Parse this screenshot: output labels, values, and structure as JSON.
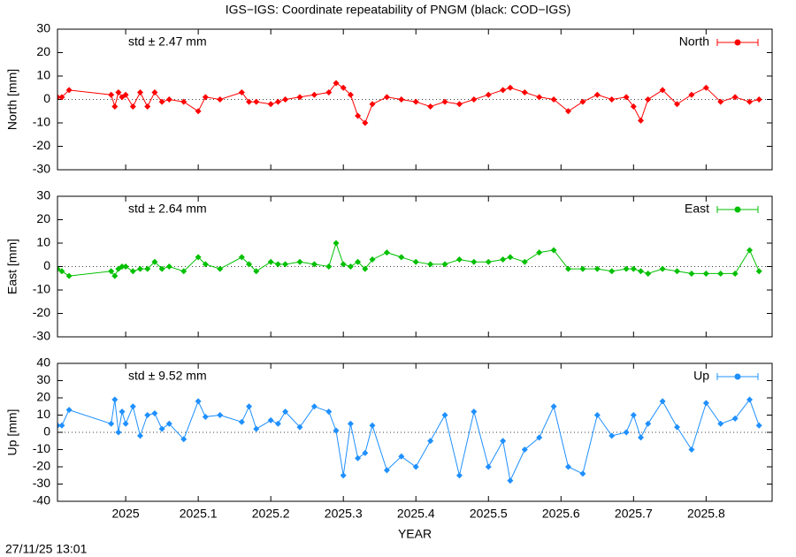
{
  "title": "IGS−IGS: Coordinate repeatability of PNGM (black: COD−IGS)",
  "timestamp": "27/11/25 13:01",
  "chart_data": [
    {
      "type": "line",
      "ylabel": "North [mm]",
      "annotation": "std ± 2.47 mm",
      "xlim": [
        2024.906,
        2025.891
      ],
      "xticks": [
        2025,
        2025.1,
        2025.2,
        2025.3,
        2025.4,
        2025.5,
        2025.6,
        2025.7,
        2025.8
      ],
      "ylim": [
        -30,
        30
      ],
      "yticks": [
        -30,
        -20,
        -10,
        0,
        10,
        20,
        30
      ],
      "x": [
        2024.906,
        2024.912,
        2024.922,
        2024.98,
        2024.985,
        2024.99,
        2024.995,
        2025.0,
        2025.01,
        2025.02,
        2025.03,
        2025.04,
        2025.05,
        2025.06,
        2025.08,
        2025.1,
        2025.11,
        2025.13,
        2025.16,
        2025.17,
        2025.18,
        2025.2,
        2025.21,
        2025.22,
        2025.24,
        2025.26,
        2025.28,
        2025.29,
        2025.3,
        2025.31,
        2025.32,
        2025.33,
        2025.34,
        2025.36,
        2025.38,
        2025.4,
        2025.42,
        2025.44,
        2025.46,
        2025.48,
        2025.5,
        2025.52,
        2025.53,
        2025.55,
        2025.57,
        2025.59,
        2025.61,
        2025.63,
        2025.65,
        2025.67,
        2025.69,
        2025.7,
        2025.71,
        2025.72,
        2025.74,
        2025.76,
        2025.78,
        2025.8,
        2025.82,
        2025.84,
        2025.86,
        2025.873
      ],
      "series": [
        {
          "name": "North",
          "color": "#ff0000",
          "values": [
            1,
            1,
            4,
            2,
            -3,
            3,
            1,
            2,
            -3,
            3,
            -3,
            3,
            -1,
            0,
            -1,
            -5,
            1,
            0,
            3,
            -1,
            -1,
            -2,
            -1,
            0,
            1,
            2,
            3,
            7,
            5,
            2,
            -7,
            -10,
            -2,
            1,
            0,
            -1,
            -3,
            -1,
            -2,
            0,
            2,
            4,
            5,
            3,
            1,
            0,
            -5,
            -1,
            2,
            0,
            1,
            -3,
            -9,
            0,
            4,
            -2,
            2,
            5,
            -1,
            1,
            -1,
            0
          ]
        }
      ]
    },
    {
      "type": "line",
      "ylabel": "East [mm]",
      "annotation": "std ± 2.64 mm",
      "xlim": [
        2024.906,
        2025.891
      ],
      "xticks": [
        2025,
        2025.1,
        2025.2,
        2025.3,
        2025.4,
        2025.5,
        2025.6,
        2025.7,
        2025.8
      ],
      "ylim": [
        -30,
        30
      ],
      "yticks": [
        -30,
        -20,
        -10,
        0,
        10,
        20,
        30
      ],
      "x": [
        2024.906,
        2024.912,
        2024.922,
        2024.98,
        2024.985,
        2024.99,
        2024.995,
        2025.0,
        2025.01,
        2025.02,
        2025.03,
        2025.04,
        2025.05,
        2025.06,
        2025.08,
        2025.1,
        2025.11,
        2025.13,
        2025.16,
        2025.17,
        2025.18,
        2025.2,
        2025.21,
        2025.22,
        2025.24,
        2025.26,
        2025.28,
        2025.29,
        2025.3,
        2025.31,
        2025.32,
        2025.33,
        2025.34,
        2025.36,
        2025.38,
        2025.4,
        2025.42,
        2025.44,
        2025.46,
        2025.48,
        2025.5,
        2025.52,
        2025.53,
        2025.55,
        2025.57,
        2025.59,
        2025.61,
        2025.63,
        2025.65,
        2025.67,
        2025.69,
        2025.7,
        2025.71,
        2025.72,
        2025.74,
        2025.76,
        2025.78,
        2025.8,
        2025.82,
        2025.84,
        2025.86,
        2025.873
      ],
      "series": [
        {
          "name": "East",
          "color": "#00c000",
          "values": [
            -1,
            -2,
            -4,
            -2,
            -4,
            -1,
            0,
            0,
            -2,
            -1,
            -1,
            2,
            -1,
            0,
            -2,
            4,
            1,
            -1,
            4,
            1,
            -2,
            2,
            1,
            1,
            2,
            1,
            0,
            10,
            1,
            0,
            2,
            -1,
            3,
            6,
            4,
            2,
            1,
            1,
            3,
            2,
            2,
            3,
            4,
            2,
            6,
            7,
            -1,
            -1,
            -1,
            -2,
            -1,
            -1,
            -2,
            -3,
            -1,
            -2,
            -3,
            -3,
            -3,
            -3,
            7,
            -2
          ]
        }
      ]
    },
    {
      "type": "line",
      "ylabel": "Up [mm]",
      "annotation": "std ± 9.52 mm",
      "xlabel": "YEAR",
      "xlim": [
        2024.906,
        2025.891
      ],
      "xticks": [
        2025,
        2025.1,
        2025.2,
        2025.3,
        2025.4,
        2025.5,
        2025.6,
        2025.7,
        2025.8
      ],
      "ylim": [
        -40,
        40
      ],
      "yticks": [
        -40,
        -30,
        -20,
        -10,
        0,
        10,
        20,
        30,
        40
      ],
      "x": [
        2024.906,
        2024.912,
        2024.922,
        2024.98,
        2024.985,
        2024.99,
        2024.995,
        2025.0,
        2025.01,
        2025.02,
        2025.03,
        2025.04,
        2025.05,
        2025.06,
        2025.08,
        2025.1,
        2025.11,
        2025.13,
        2025.16,
        2025.17,
        2025.18,
        2025.2,
        2025.21,
        2025.22,
        2025.24,
        2025.26,
        2025.28,
        2025.29,
        2025.3,
        2025.31,
        2025.32,
        2025.33,
        2025.34,
        2025.36,
        2025.38,
        2025.4,
        2025.42,
        2025.44,
        2025.46,
        2025.48,
        2025.5,
        2025.52,
        2025.53,
        2025.55,
        2025.57,
        2025.59,
        2025.61,
        2025.63,
        2025.65,
        2025.67,
        2025.69,
        2025.7,
        2025.71,
        2025.72,
        2025.74,
        2025.76,
        2025.78,
        2025.8,
        2025.82,
        2025.84,
        2025.86,
        2025.873
      ],
      "series": [
        {
          "name": "Up",
          "color": "#1e90ff",
          "values": [
            4,
            4,
            13,
            5,
            19,
            0,
            12,
            5,
            15,
            -2,
            10,
            11,
            2,
            5,
            -4,
            18,
            9,
            10,
            6,
            15,
            2,
            7,
            5,
            12,
            3,
            15,
            12,
            1,
            -25,
            5,
            -15,
            -12,
            4,
            -22,
            -14,
            -20,
            -5,
            10,
            -25,
            12,
            -20,
            -5,
            -28,
            -10,
            -3,
            15,
            -20,
            -24,
            10,
            -2,
            0,
            10,
            -3,
            5,
            18,
            3,
            -10,
            17,
            5,
            8,
            19,
            4
          ]
        }
      ]
    }
  ]
}
